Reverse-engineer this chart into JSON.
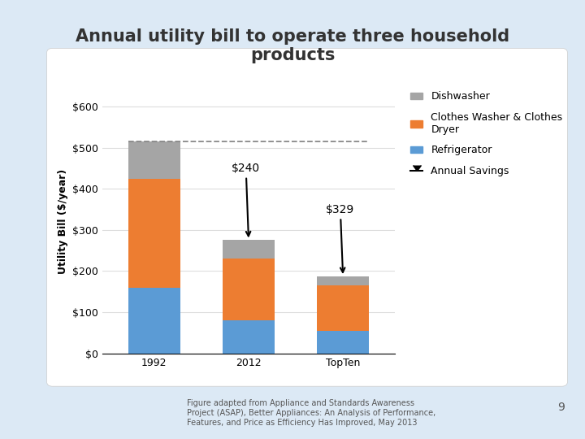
{
  "title": "Annual utility bill to operate three household\nproducts",
  "ylabel": "Utility Bill ($/year)",
  "categories": [
    "1992",
    "2012",
    "TopTen"
  ],
  "refrigerator": [
    160,
    80,
    55
  ],
  "clothes_washer": [
    265,
    150,
    110
  ],
  "dishwasher": [
    90,
    45,
    22
  ],
  "totals": [
    515,
    275,
    187
  ],
  "dashed_line_y": 515,
  "color_refrigerator": "#5B9BD5",
  "color_clothes_washer": "#ED7D31",
  "color_dishwasher": "#A5A5A5",
  "ytick_labels": [
    "$0",
    "$100",
    "$200",
    "$300",
    "$400",
    "$500",
    "$600"
  ],
  "ytick_values": [
    0,
    100,
    200,
    300,
    400,
    500,
    600
  ],
  "ylim": [
    0,
    640
  ],
  "bar_width": 0.55,
  "title_fontsize": 15,
  "axis_fontsize": 9,
  "legend_fontsize": 9,
  "tick_fontsize": 9,
  "background_color": "#FFFFFF",
  "figure_bg": "#DCE9F5",
  "panel_bg": "#FFFFFF",
  "citation_text": "Figure adapted from Appliance and Standards Awareness\nProject (ASAP), Better Appliances: An Analysis of Performance,\nFeatures, and Price as Efficiency Has Improved, May 2013",
  "page_num": "9"
}
